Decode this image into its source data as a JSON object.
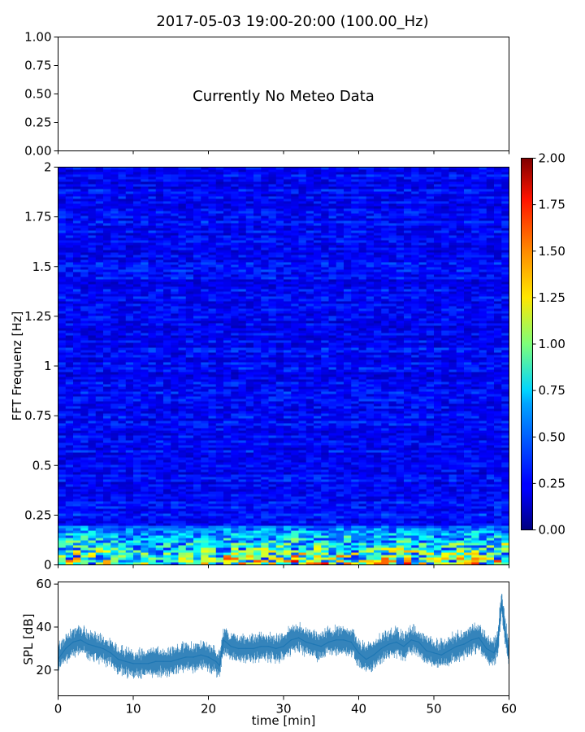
{
  "figure": {
    "title": "2017-05-03 19:00-20:00 (100.00_Hz)"
  },
  "chart_data": [
    {
      "type": "line",
      "panel": "meteo",
      "annotation": "Currently No Meteo Data",
      "ylim": [
        0,
        1
      ],
      "yticks": [
        "0.00",
        "0.25",
        "0.50",
        "0.75",
        "1.00"
      ],
      "xlim": [
        0,
        60
      ],
      "x_tick_labels_visible": false,
      "series": []
    },
    {
      "type": "heatmap",
      "panel": "spectrogram",
      "ylabel": "FFT Frequenz [Hz]",
      "xlim": [
        0,
        60
      ],
      "ylim": [
        0,
        2
      ],
      "yticks": [
        "0",
        "0.25",
        "0.5",
        "0.75",
        "1",
        "1.25",
        "1.5",
        "1.75",
        "2"
      ],
      "x_tick_labels_visible": false,
      "colormap": "jet",
      "colorbar": {
        "range": [
          0,
          2
        ],
        "ticks": [
          "0.00",
          "0.25",
          "0.50",
          "0.75",
          "1.00",
          "1.25",
          "1.50",
          "1.75",
          "2.00"
        ]
      },
      "description_values": {
        "background_level": 0.22,
        "low_freq_band_hz": [
          0,
          0.2
        ],
        "low_freq_level_range": [
          0.6,
          2.0
        ]
      }
    },
    {
      "type": "line",
      "panel": "spl",
      "xlabel": "time [min]",
      "ylabel": "SPL [dB]",
      "xlim": [
        0,
        60
      ],
      "ylim": [
        8,
        61
      ],
      "xticks": [
        "0",
        "10",
        "20",
        "30",
        "40",
        "50",
        "60"
      ],
      "yticks": [
        "20",
        "40",
        "60"
      ],
      "color": "#1f77b4",
      "series": [
        {
          "x": [
            0,
            1,
            2,
            3,
            4,
            5,
            6,
            7,
            8,
            9,
            10,
            11,
            12,
            13,
            14,
            15,
            16,
            17,
            18,
            19,
            20,
            21,
            21.5,
            22,
            23,
            24,
            25,
            26,
            27,
            28,
            29,
            30,
            31,
            32,
            33,
            34,
            35,
            36,
            37,
            38,
            39,
            40,
            41,
            42,
            43,
            44,
            45,
            46,
            47,
            48,
            49,
            50,
            51,
            52,
            53,
            54,
            55,
            56,
            57,
            58,
            58.5,
            59,
            59.5,
            60
          ],
          "values": [
            25,
            30,
            33,
            34,
            32,
            31,
            30,
            28,
            25,
            24,
            23,
            23,
            23,
            24,
            24,
            24,
            25,
            26,
            26,
            27,
            26,
            24,
            22,
            34,
            31,
            30,
            30,
            30,
            31,
            31,
            30,
            31,
            34,
            35,
            33,
            32,
            31,
            33,
            34,
            34,
            33,
            28,
            25,
            27,
            30,
            32,
            33,
            31,
            34,
            33,
            29,
            28,
            27,
            29,
            31,
            32,
            34,
            35,
            30,
            28,
            32,
            52,
            38,
            26
          ]
        }
      ],
      "band_halfwidth_db": 5
    }
  ]
}
